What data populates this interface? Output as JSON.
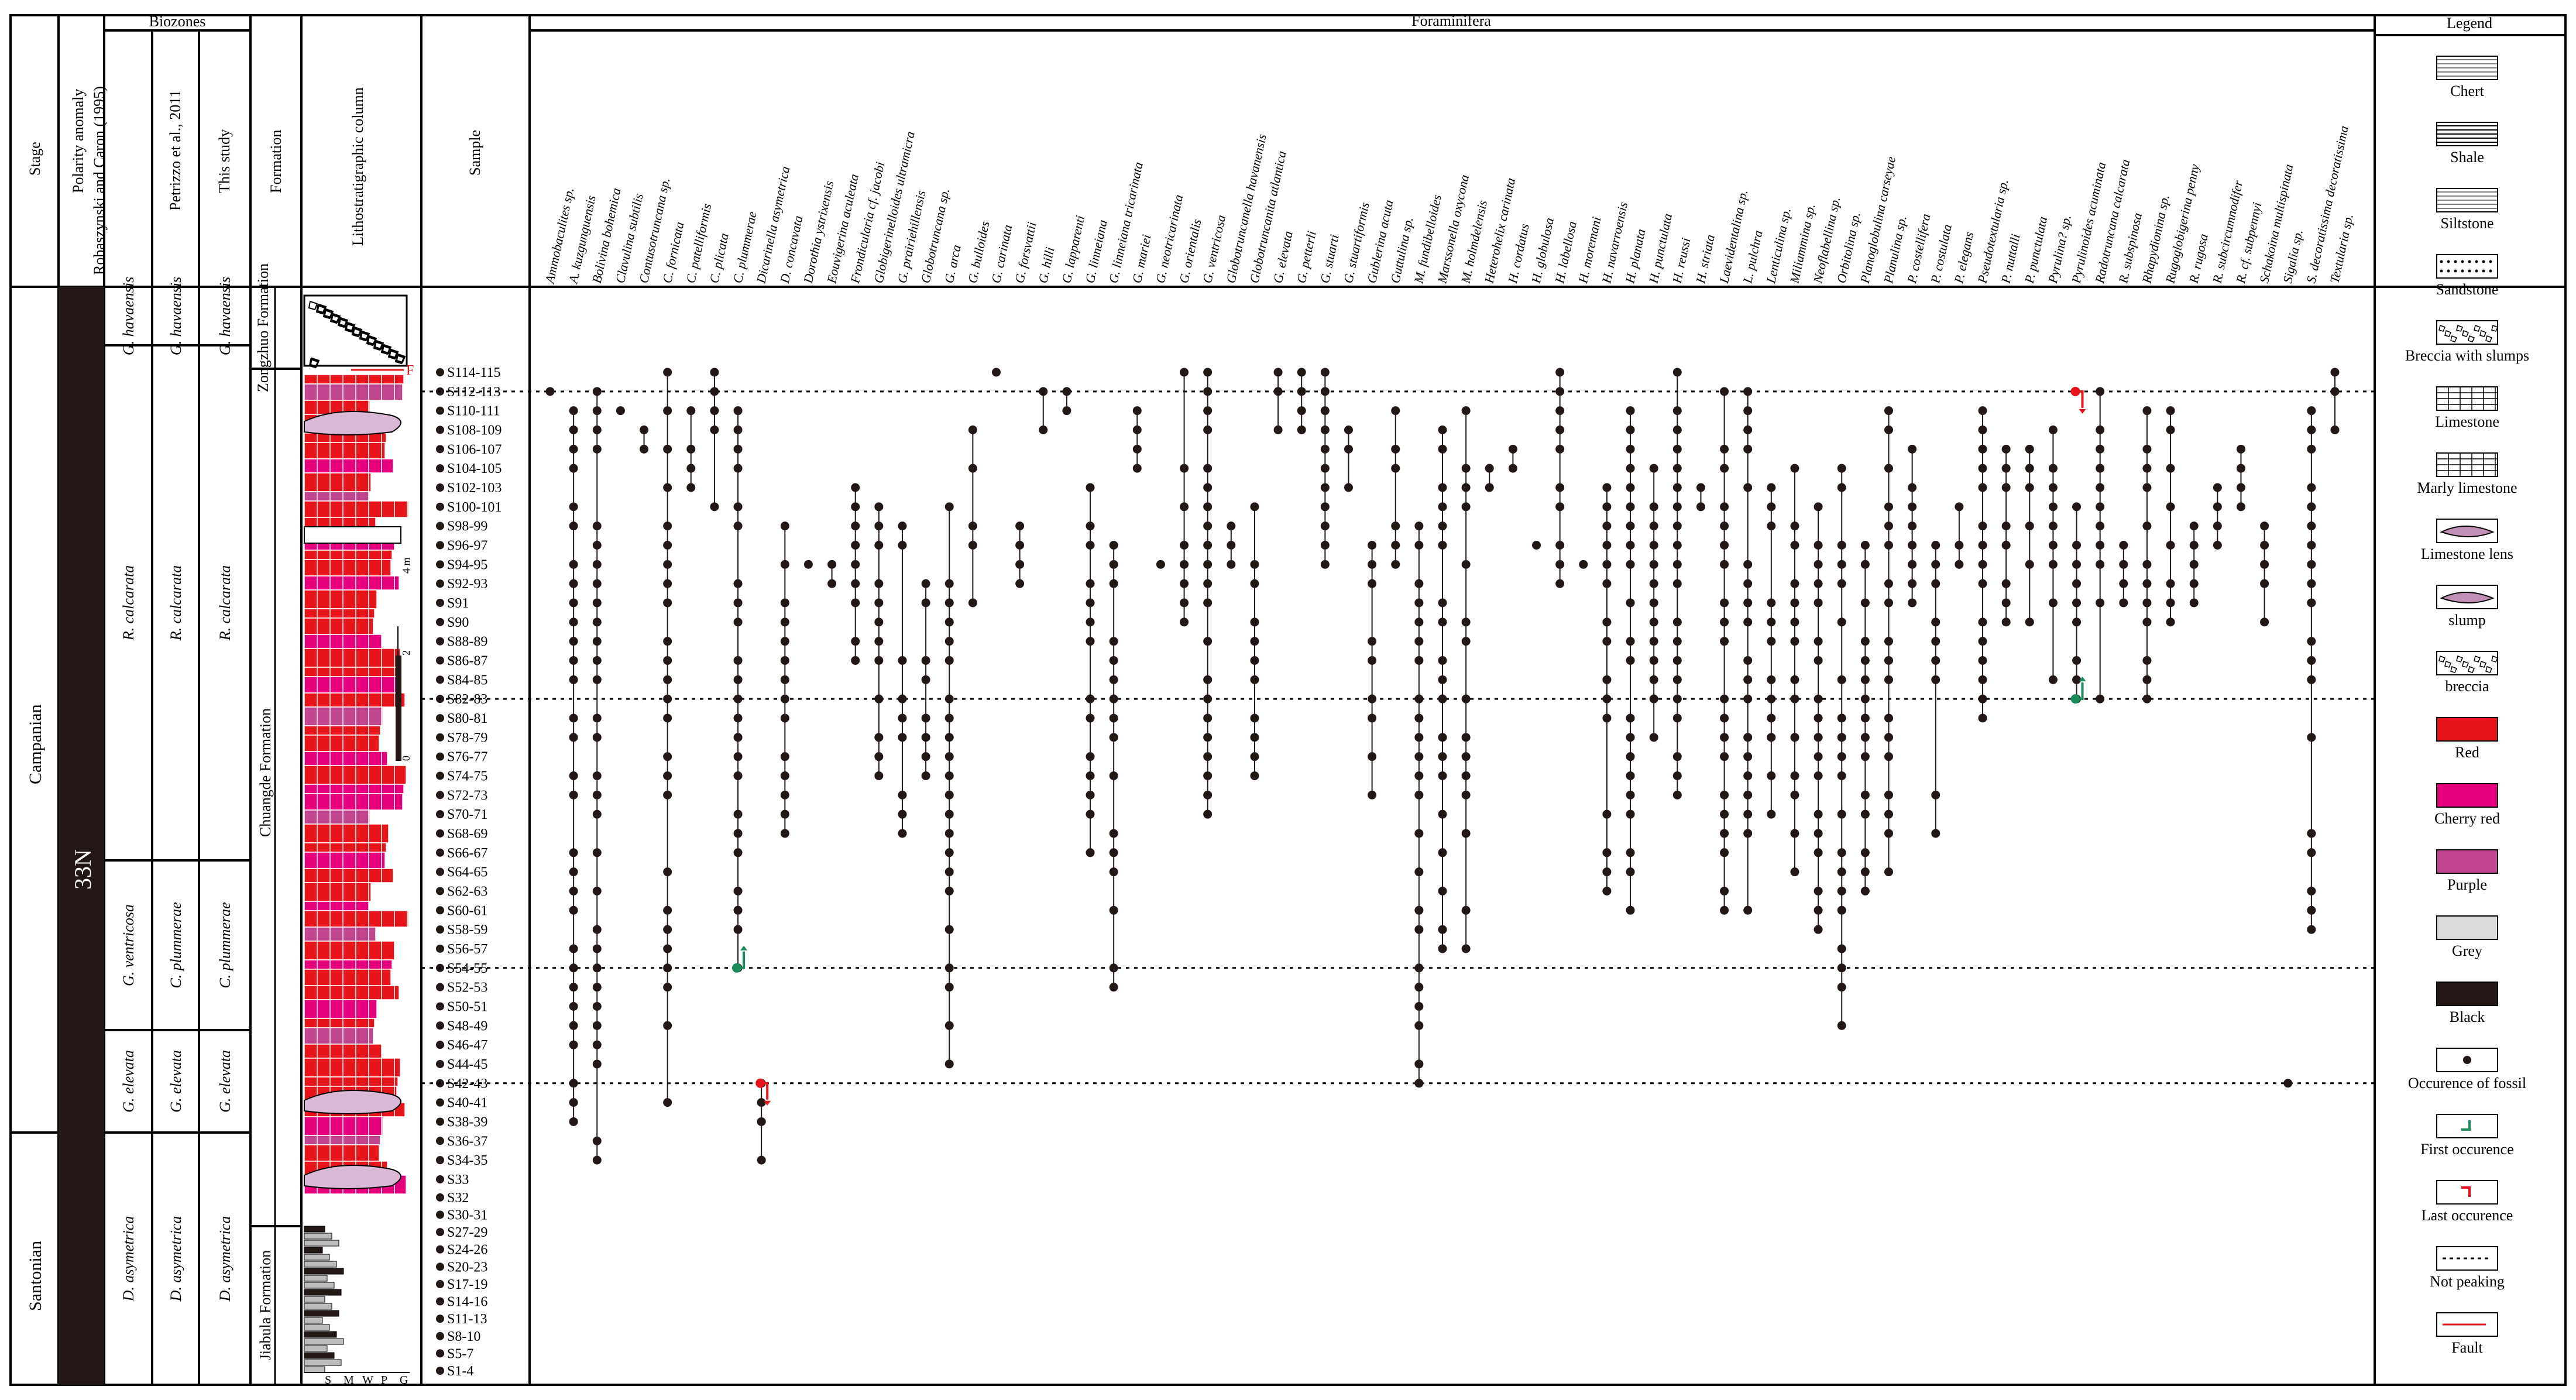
{
  "headers": {
    "stage": "Stage",
    "polarity": "Polarity anomaly",
    "biozones": "Biozones",
    "bz_cols": [
      "Robaszynski and Caron (1995)",
      "Petrizzo et al., 2011",
      "This study"
    ],
    "formation": "Formation",
    "litho": "Lithostratigraphic column",
    "sample": "Sample",
    "forams": "Foraminifera",
    "legend": "Legend"
  },
  "stages": [
    "Campanian",
    "Santonian"
  ],
  "polarity_label": "33N",
  "biozones": {
    "robaszynski_caron": [
      "G. havaensis",
      "R. calcarata",
      "G. ventricosa",
      "G. elevata",
      "D. asymetrica"
    ],
    "petrizzo": [
      "G. havaensis",
      "R. calcarata",
      "C. plummerae",
      "G. elevata",
      "D. asymetrica"
    ],
    "this_study": [
      "G. havaensis",
      "R. calcarata",
      "C. plummerae",
      "G. elevata",
      "D. asymetrica"
    ]
  },
  "formations": [
    "Zongzhuo Formation",
    "Chuangde Formation",
    "Jiabula Formation"
  ],
  "grain_labels": [
    "S",
    "M",
    "W",
    "P",
    "G"
  ],
  "scale_labels": [
    "0",
    "2",
    "4 m"
  ],
  "fault_label": "F",
  "samples": [
    "S114-115",
    "S112-113",
    "S110-111",
    "S108-109",
    "S106-107",
    "S104-105",
    "S102-103",
    "S100-101",
    "S98-99",
    "S96-97",
    "S94-95",
    "S92-93",
    "S91",
    "S90",
    "S88-89",
    "S86-87",
    "S84-85",
    "S82-83",
    "S80-81",
    "S78-79",
    "S76-77",
    "S74-75",
    "S72-73",
    "S70-71",
    "S68-69",
    "S66-67",
    "S64-65",
    "S62-63",
    "S60-61",
    "S58-59",
    "S56-57",
    "S54-55",
    "S52-53",
    "S50-51",
    "S48-49",
    "S46-47",
    "S44-45",
    "S42-43",
    "S40-41",
    "S38-39",
    "S36-37",
    "S34-35",
    "S33",
    "S32",
    "S30-31",
    "S27-29",
    "S24-26",
    "S20-23",
    "S17-19",
    "S14-16",
    "S11-13",
    "S8-10",
    "S5-7",
    "S1-4"
  ],
  "species": [
    "Ammobaculites sp.",
    "A. kuzgunguensis",
    "Bolivina bohemica",
    "Clavulina subtilis",
    "Contusotruncana sp.",
    "C. fornicata",
    "C. patelliformis",
    "C. plicata",
    "C. plummerae",
    "Dicarinella asymetrica",
    "D. concavata",
    "Dorothia ystrixensis",
    "Eouvigerina aculeata",
    "Frondicularia cf. jacobi",
    "Globigerinelloides ultramicra",
    "G. prairiehillensis",
    "Globotruncana sp.",
    "G. arca",
    "G. bulloides",
    "G. carinata",
    "G. forsvattii",
    "G. hilli",
    "G. lapparenti",
    "G. linneiana",
    "G. linneiana tricarinata",
    "G. mariei",
    "G. neotricarinata",
    "G. orientalis",
    "G. ventricosa",
    "Globotruncanella havanensis",
    "Globotruncanita atlantica",
    "G. elevata",
    "G. petterli",
    "G. stuarti",
    "G. stuartiformis",
    "Gublerina acuta",
    "Guttulina sp.",
    "M. fundibelloides",
    "Marssonella oxycona",
    "M. holmdelensis",
    "Heterohelix carinata",
    "H. cordatus",
    "H. globulosa",
    "H. labellosa",
    "H. moremani",
    "H. navarroensis",
    "H. planata",
    "H. punctulata",
    "H. reussi",
    "H. striata",
    "Laevidentalina sp.",
    "L. pulchra",
    "Lenticulina sp.",
    "Miliammina sp.",
    "Neoflabellina sp.",
    "Orbitolina sp.",
    "Planoglobulina carseyae",
    "Planulina sp.",
    "P. costellifera",
    "P. costulata",
    "P. elegans",
    "Pseudotextularia sp.",
    "P. nuttalli",
    "P. punctulata",
    "Pyrulina? sp.",
    "Pyrulinoides acuminata",
    "Radotruncana calcarata",
    "R. subspinosa",
    "Rhapydionina sp.",
    "Rugoglobigerina penny",
    "R. rugosa",
    "R. subcircumnodifer",
    "R. cf. subpennyi",
    "Schakoina multispinata",
    "Sigalia sp.",
    "S. decoratissima decoratissima",
    "Textularia sp."
  ],
  "legend": [
    {
      "key": "chert",
      "label": "Chert"
    },
    {
      "key": "shale",
      "label": "Shale"
    },
    {
      "key": "siltstone",
      "label": "Siltstone"
    },
    {
      "key": "sandstone",
      "label": "Sandstone"
    },
    {
      "key": "breccia_slumps",
      "label": "Breccia with slumps"
    },
    {
      "key": "limestone",
      "label": "Limestone"
    },
    {
      "key": "marly",
      "label": "Marly limestone"
    },
    {
      "key": "lens",
      "label": "Limestone lens"
    },
    {
      "key": "slump",
      "label": "slump"
    },
    {
      "key": "breccia",
      "label": "breccia"
    },
    {
      "key": "red",
      "label": "Red"
    },
    {
      "key": "cherry",
      "label": "Cherry red"
    },
    {
      "key": "purple",
      "label": "Purple"
    },
    {
      "key": "grey",
      "label": "Grey"
    },
    {
      "key": "black",
      "label": "Black"
    },
    {
      "key": "fossil",
      "label": "Occurence of fossil"
    },
    {
      "key": "first",
      "label": "First occurence"
    },
    {
      "key": "last",
      "label": "Last occurence"
    },
    {
      "key": "notpeak",
      "label": "Not peaking"
    },
    {
      "key": "fault",
      "label": "Fault"
    }
  ],
  "colors": {
    "red": "#e8141c",
    "cherry": "#e6007e",
    "purple": "#c1448e",
    "grey": "#dcdcdc",
    "black": "#231815",
    "dot": "#231815",
    "green": "#1a8a5a"
  },
  "chart_data": {
    "type": "range chart",
    "ranges": [
      {
        "species": "Ammobaculites sp.",
        "first": "S112-113",
        "last": "S112-113"
      },
      {
        "species": "A. kuzgunguensis",
        "first": "S38-39",
        "last": "S110-111"
      },
      {
        "species": "Bolivina bohemica",
        "first": "S34-35",
        "last": "S112-113"
      },
      {
        "species": "Clavulina subtilis",
        "first": "S110-111",
        "last": "S110-111"
      },
      {
        "species": "Contusotruncana sp.",
        "first": "S106-107",
        "last": "S108-109"
      },
      {
        "species": "C. fornicata",
        "first": "S40-41",
        "last": "S114-115"
      },
      {
        "species": "C. patelliformis",
        "first": "S102-103",
        "last": "S110-111"
      },
      {
        "species": "C. plicata",
        "first": "S100-101",
        "last": "S114-115"
      },
      {
        "species": "C. plummerae",
        "first": "S54-55",
        "last": "S110-111"
      },
      {
        "species": "Dicarinella asymetrica",
        "first": "S34-35",
        "last": "S42-43"
      },
      {
        "species": "Radotruncana calcarata",
        "first": "S82-83",
        "last": "S112-113"
      },
      {
        "species": "Sigalia sp.",
        "first": "S42-43",
        "last": "S42-43"
      }
    ]
  }
}
